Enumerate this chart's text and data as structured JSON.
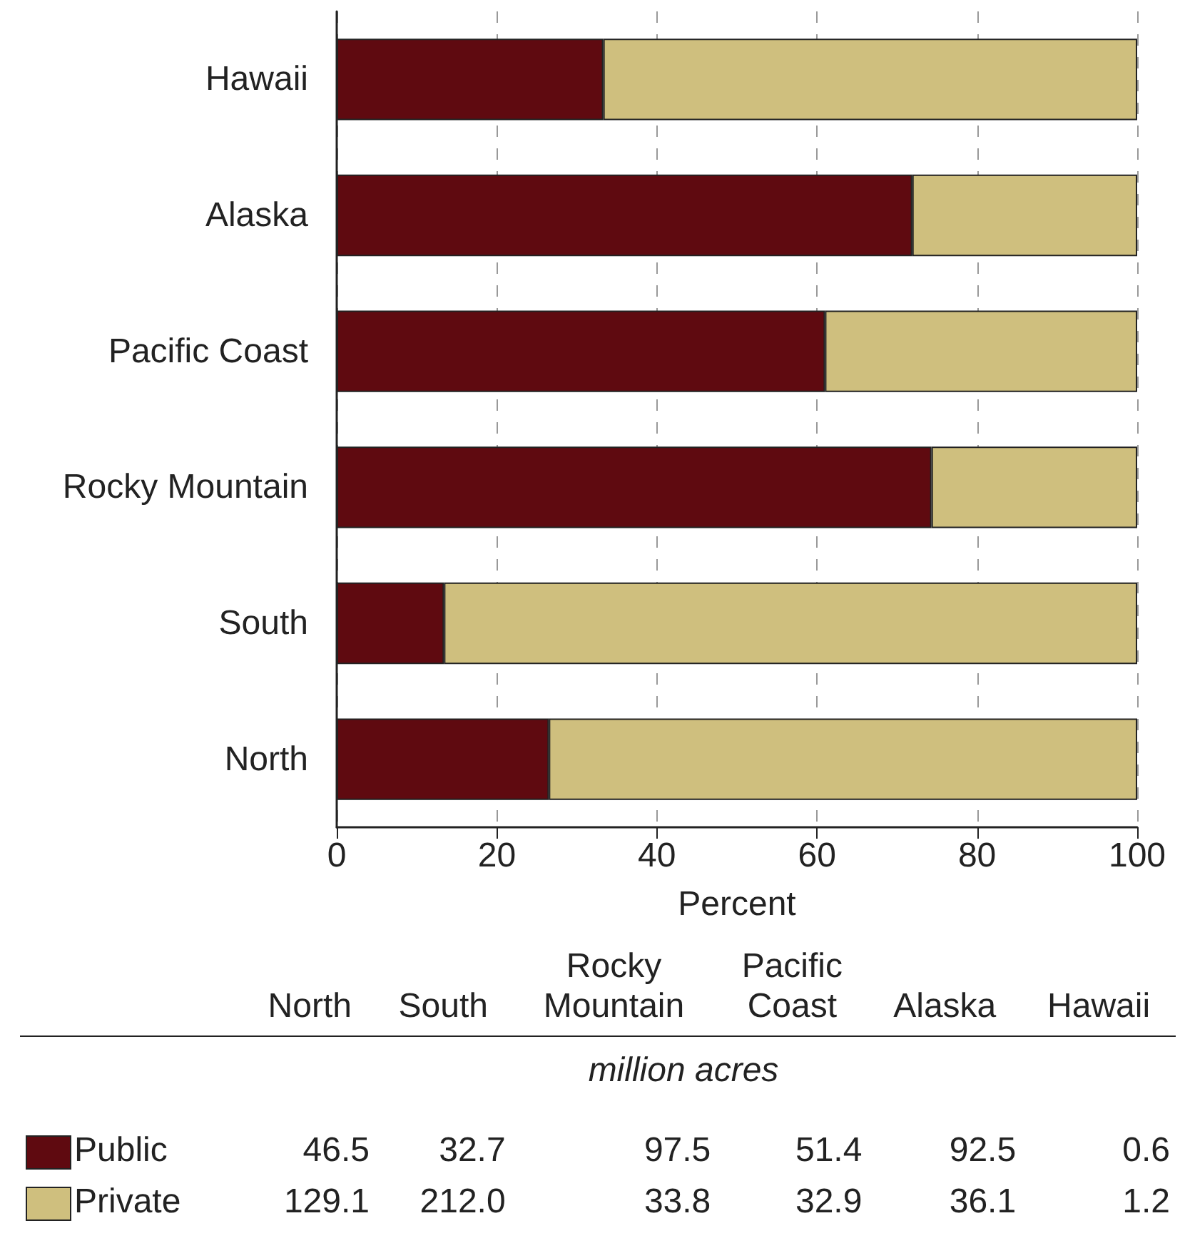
{
  "chart_data": [
    {
      "type": "bar",
      "orientation": "horizontal",
      "stacked": true,
      "xlabel": "Percent",
      "categories": [
        "Hawaii",
        "Alaska",
        "Pacific Coast",
        "Rocky Mountain",
        "South",
        "North"
      ],
      "series": [
        {
          "name": "Public",
          "color": "#5f0a10",
          "values": [
            33.3,
            71.9,
            61.0,
            74.3,
            13.4,
            26.5
          ]
        },
        {
          "name": "Private",
          "color": "#cfbf7e",
          "values": [
            66.7,
            28.1,
            39.0,
            25.7,
            86.6,
            73.5
          ]
        }
      ],
      "xlim": [
        0,
        100
      ],
      "xticks": [
        0,
        20,
        40,
        60,
        80,
        100
      ],
      "grid": "x"
    },
    {
      "type": "other",
      "categories": [
        "North",
        "South",
        "Rocky Mountain",
        "Pacific Coast",
        "Alaska",
        "Hawaii"
      ],
      "series": [
        {
          "values": [
            46.5,
            32.7,
            97.5,
            51.4,
            92.5,
            0.6
          ],
          "value_labels": [
            "46.5",
            "32.7",
            "97.5",
            "51.4",
            "92.5",
            "0.6"
          ]
        },
        {
          "values": [
            129.1,
            212.0,
            33.8,
            32.9,
            36.1,
            1.2
          ],
          "value_labels": [
            "129.1",
            "212.0",
            "33.8",
            "32.9",
            "36.1",
            "1.2"
          ]
        }
      ],
      "annotations": [
        "million acres"
      ]
    }
  ]
}
